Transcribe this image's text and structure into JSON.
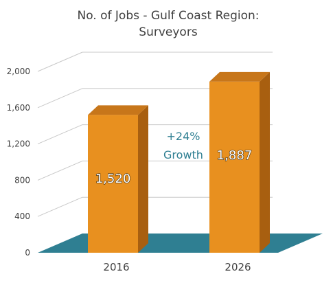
{
  "chart_data": {
    "type": "bar",
    "title_line1": "No. of Jobs - Gulf Coast Region:",
    "title_line2": "Surveyors",
    "categories": [
      "2016",
      "2026"
    ],
    "values": [
      1520,
      1887
    ],
    "data_labels": [
      "1,520",
      "1,887"
    ],
    "y_ticks": [
      0,
      400,
      800,
      1200,
      1600,
      2000
    ],
    "y_tick_labels": [
      "0",
      "400",
      "800",
      "1,200",
      "1,600",
      "2,000"
    ],
    "ylim": [
      0,
      2000
    ],
    "annotation_line1": "+24%",
    "annotation_line2": "Growth",
    "colors": {
      "bar_front": "#e8901f",
      "bar_side": "#a85f10",
      "bar_top": "#c7761a",
      "floor": "#2f7f92",
      "grid": "#c8c8c8",
      "text": "#404040",
      "annotation": "#2f7f92"
    }
  }
}
